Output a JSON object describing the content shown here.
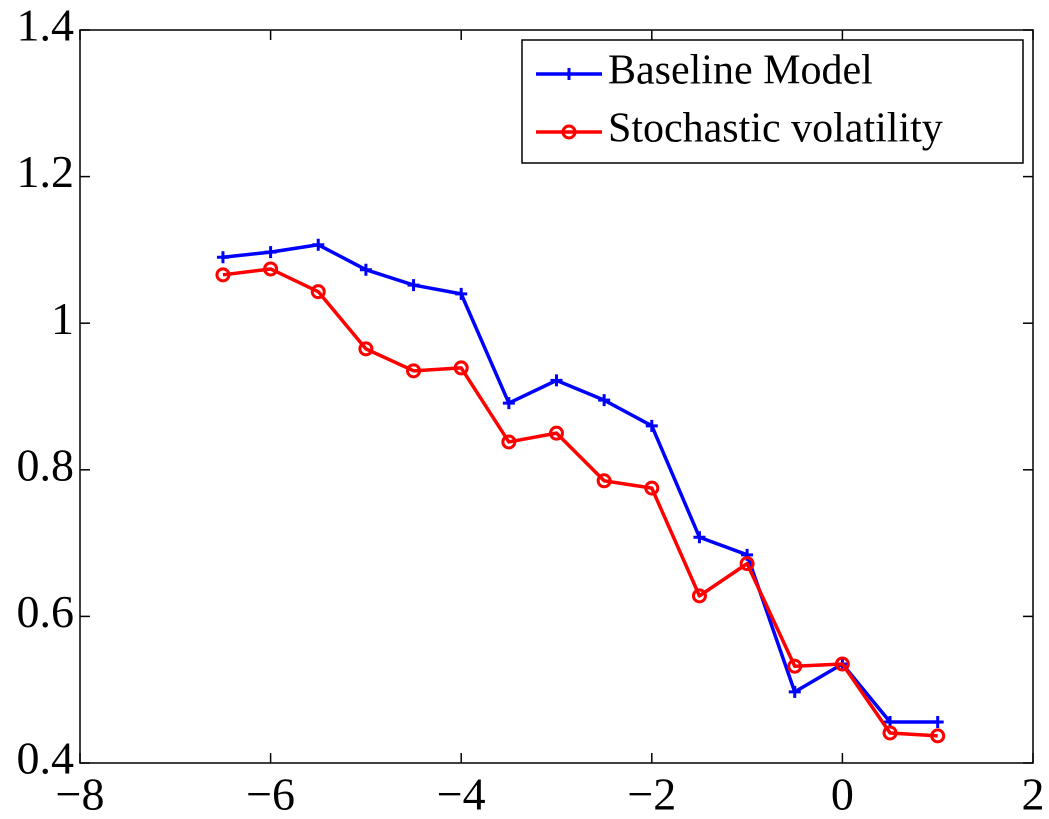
{
  "chart_data": {
    "type": "line",
    "x": [
      -6.5,
      -6,
      -5.5,
      -5,
      -4.5,
      -4,
      -3.5,
      -3,
      -2.5,
      -2,
      -1.5,
      -1,
      -0.5,
      0,
      0.5,
      1
    ],
    "series": [
      {
        "name": "Baseline Model",
        "color": "#0000ff",
        "marker": "plus",
        "values": [
          1.09,
          1.097,
          1.107,
          1.073,
          1.052,
          1.04,
          0.891,
          0.922,
          0.895,
          0.86,
          0.708,
          0.684,
          0.497,
          0.535,
          0.456,
          0.456
        ]
      },
      {
        "name": "Stochastic volatility",
        "color": "#ff0000",
        "marker": "circle",
        "values": [
          1.066,
          1.074,
          1.043,
          0.965,
          0.935,
          0.939,
          0.838,
          0.85,
          0.785,
          0.775,
          0.628,
          0.672,
          0.532,
          0.535,
          0.441,
          0.437
        ]
      }
    ],
    "xlim": [
      -8,
      2
    ],
    "xticks": [
      {
        "value": -8,
        "label": "−8"
      },
      {
        "value": -6,
        "label": "−6"
      },
      {
        "value": -4,
        "label": "−4"
      },
      {
        "value": -2,
        "label": "−2"
      },
      0,
      2
    ],
    "ylim": [
      0.4,
      1.4
    ],
    "yticks": [
      0.4,
      0.6,
      0.8,
      1,
      1.2,
      1.4
    ],
    "grid": false,
    "legend": "top-right"
  }
}
